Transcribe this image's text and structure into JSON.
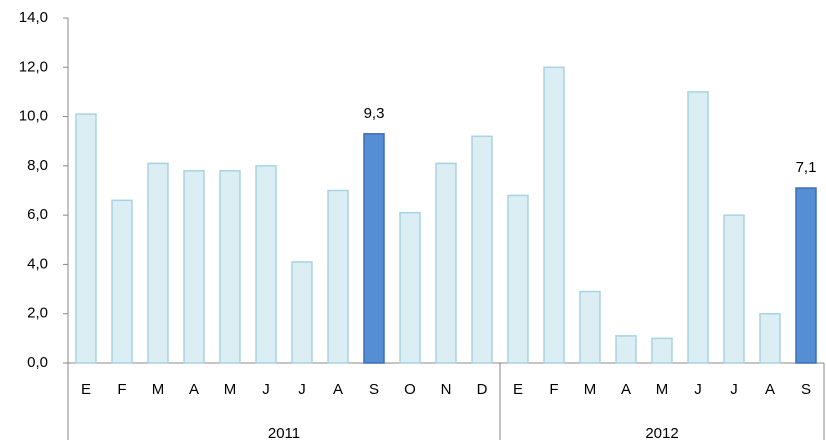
{
  "chart_data": {
    "type": "bar",
    "groups": [
      {
        "name": "2011",
        "categories": [
          "E",
          "F",
          "M",
          "A",
          "M",
          "J",
          "J",
          "A",
          "S",
          "O",
          "N",
          "D"
        ],
        "values": [
          10.1,
          6.6,
          8.1,
          7.8,
          7.8,
          8.0,
          4.1,
          7.0,
          9.3,
          6.1,
          8.1,
          9.2
        ],
        "value_labels": [
          null,
          null,
          null,
          null,
          null,
          null,
          null,
          null,
          "9,3",
          null,
          null,
          null
        ],
        "colors": [
          "#dbeef4",
          "#dbeef4",
          "#dbeef4",
          "#dbeef4",
          "#dbeef4",
          "#dbeef4",
          "#dbeef4",
          "#dbeef4",
          "#558ed5",
          "#dbeef4",
          "#dbeef4",
          "#dbeef4"
        ]
      },
      {
        "name": "2012",
        "categories": [
          "E",
          "F",
          "M",
          "A",
          "M",
          "J",
          "J",
          "A",
          "S"
        ],
        "values": [
          6.8,
          12.0,
          2.9,
          1.1,
          1.0,
          11.0,
          6.0,
          2.0,
          7.1
        ],
        "value_labels": [
          null,
          null,
          null,
          null,
          null,
          null,
          null,
          null,
          "7,1"
        ],
        "colors": [
          "#dbeef4",
          "#dbeef4",
          "#dbeef4",
          "#dbeef4",
          "#dbeef4",
          "#dbeef4",
          "#dbeef4",
          "#dbeef4",
          "#558ed5"
        ]
      }
    ],
    "ylim": [
      0,
      14
    ],
    "yticks": [
      {
        "value": 0,
        "label": "0,0"
      },
      {
        "value": 2,
        "label": "2,0"
      },
      {
        "value": 4,
        "label": "4,0"
      },
      {
        "value": 6,
        "label": "6,0"
      },
      {
        "value": 8,
        "label": "8,0"
      },
      {
        "value": 10,
        "label": "10,0"
      },
      {
        "value": 12,
        "label": "12,0"
      },
      {
        "value": 14,
        "label": "14,0"
      }
    ]
  }
}
